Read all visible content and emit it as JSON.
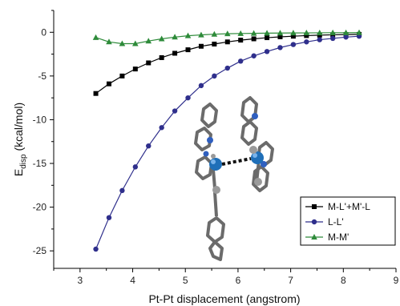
{
  "chart_data": {
    "type": "line",
    "xlabel": "Pt-Pt displacement (angstrom)",
    "ylabel": {
      "main": "E",
      "sub": "disp",
      "unit": " (kcal/mol)"
    },
    "xlim": [
      2.5,
      9
    ],
    "ylim": [
      -27,
      2.5
    ],
    "xticks": [
      3,
      4,
      5,
      6,
      7,
      8,
      9
    ],
    "yticks": [
      0,
      -5,
      -10,
      -15,
      -20,
      -25
    ],
    "grid": false,
    "legend_position": "bottom-right",
    "inset_image": "molecular-structure (two stacked Pt complexes)",
    "series": [
      {
        "name": "M-L'+M'-L",
        "color": "#000000",
        "marker": "square",
        "x": [
          3.3,
          3.55,
          3.8,
          4.05,
          4.3,
          4.55,
          4.8,
          5.05,
          5.3,
          5.55,
          5.8,
          6.05,
          6.3,
          6.55,
          6.8,
          7.05,
          7.3,
          7.55,
          7.8,
          8.05,
          8.3
        ],
        "y": [
          -7.0,
          -5.9,
          -5.0,
          -4.2,
          -3.5,
          -2.9,
          -2.4,
          -2.0,
          -1.6,
          -1.35,
          -1.1,
          -0.9,
          -0.75,
          -0.62,
          -0.52,
          -0.45,
          -0.38,
          -0.33,
          -0.29,
          -0.26,
          -0.24
        ]
      },
      {
        "name": "L-L'",
        "color": "#2f2f8c",
        "marker": "circle",
        "x": [
          3.3,
          3.55,
          3.8,
          4.05,
          4.3,
          4.55,
          4.8,
          5.05,
          5.3,
          5.55,
          5.8,
          6.05,
          6.3,
          6.55,
          6.8,
          7.05,
          7.3,
          7.55,
          7.8,
          8.05,
          8.3
        ],
        "y": [
          -24.8,
          -21.2,
          -18.1,
          -15.4,
          -13.0,
          -10.9,
          -9.0,
          -7.5,
          -6.1,
          -5.0,
          -4.1,
          -3.3,
          -2.7,
          -2.2,
          -1.75,
          -1.4,
          -1.1,
          -0.85,
          -0.7,
          -0.55,
          -0.45
        ]
      },
      {
        "name": "M-M'",
        "color": "#2e8b3a",
        "marker": "triangle",
        "x": [
          3.3,
          3.55,
          3.8,
          4.05,
          4.3,
          4.55,
          4.8,
          5.05,
          5.3,
          5.55,
          5.8,
          6.05,
          6.3,
          6.55,
          6.8,
          7.05,
          7.3,
          7.55,
          7.8,
          8.05,
          8.3
        ],
        "y": [
          -0.6,
          -1.1,
          -1.3,
          -1.3,
          -1.0,
          -0.75,
          -0.55,
          -0.4,
          -0.3,
          -0.22,
          -0.17,
          -0.14,
          -0.12,
          -0.1,
          -0.09,
          -0.08,
          -0.07,
          -0.06,
          -0.05,
          -0.05,
          -0.04
        ]
      }
    ]
  }
}
